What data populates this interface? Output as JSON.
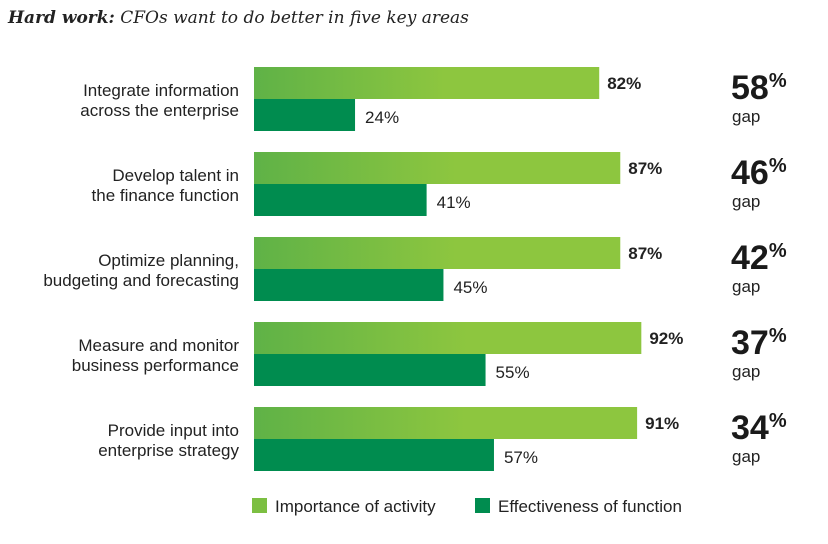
{
  "chart_data": {
    "type": "bar",
    "orientation": "horizontal",
    "title_bold": "Hard work:",
    "title_rest": " CFOs want to do better in five key areas",
    "categories": [
      [
        "Integrate information",
        "across the enterprise"
      ],
      [
        "Develop talent in",
        "the finance function"
      ],
      [
        "Optimize planning,",
        "budgeting and forecasting"
      ],
      [
        "Measure and monitor",
        "business performance"
      ],
      [
        "Provide input into",
        "enterprise strategy"
      ]
    ],
    "series": [
      {
        "name": "Importance of activity",
        "values": [
          82,
          87,
          87,
          92,
          91
        ],
        "labels": [
          "82%",
          "87%",
          "87%",
          "92%",
          "91%"
        ],
        "color": "#8dc63f",
        "color_start": "#5fb247"
      },
      {
        "name": "Effectiveness of function",
        "values": [
          24,
          41,
          45,
          55,
          57
        ],
        "labels": [
          "24%",
          "41%",
          "45%",
          "55%",
          "57%"
        ],
        "color": "#008c4f"
      }
    ],
    "gaps": [
      {
        "value": "58",
        "unit": "%",
        "label": "gap"
      },
      {
        "value": "46",
        "unit": "%",
        "label": "gap"
      },
      {
        "value": "42",
        "unit": "%",
        "label": "gap"
      },
      {
        "value": "37",
        "unit": "%",
        "label": "gap"
      },
      {
        "value": "34",
        "unit": "%",
        "label": "gap"
      }
    ],
    "xlim": [
      0,
      100
    ],
    "grid": false,
    "legend_position": "bottom"
  }
}
